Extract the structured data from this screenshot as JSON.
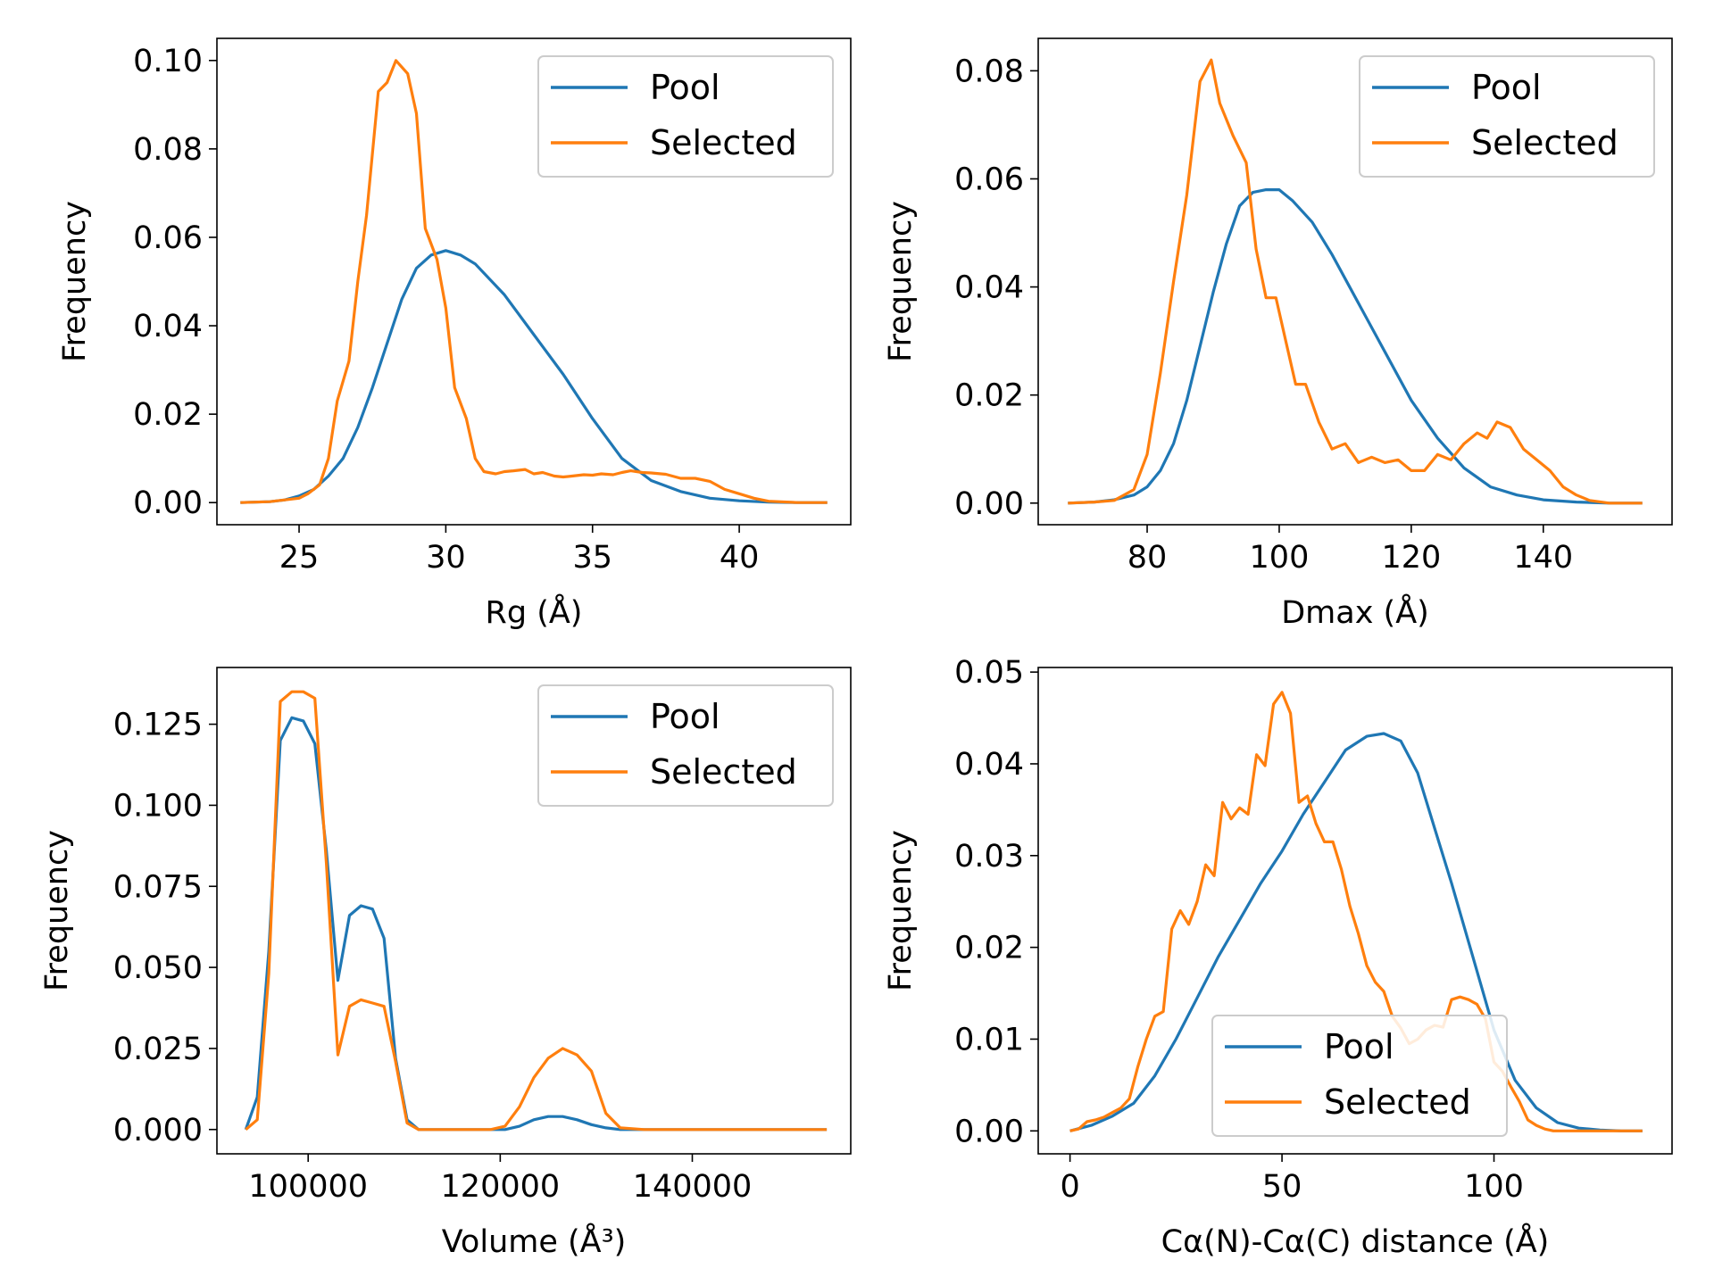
{
  "colors": {
    "pool": "#1f77b4",
    "selected": "#ff7f0e",
    "axes": "#000000",
    "legend_border": "#cccccc"
  },
  "legend_labels": [
    "Pool",
    "Selected"
  ],
  "chart_data": [
    {
      "type": "line",
      "xlabel": "Rg (Å)",
      "ylabel": "Frequency",
      "xlim": [
        22.2,
        43.8
      ],
      "ylim": [
        -0.005,
        0.105
      ],
      "xticks": [
        25,
        30,
        35,
        40
      ],
      "yticks": [
        0.0,
        0.02,
        0.04,
        0.06,
        0.08,
        0.1
      ],
      "ytick_labels": [
        "0.00",
        "0.02",
        "0.04",
        "0.06",
        "0.08",
        "0.10"
      ],
      "grid": false,
      "legend": "top-right",
      "series": [
        {
          "name": "Pool",
          "x": [
            23,
            24,
            24.5,
            25,
            25.5,
            26,
            26.5,
            27,
            27.5,
            28,
            28.5,
            29,
            29.5,
            30,
            30.5,
            31,
            32,
            33,
            34,
            35,
            36,
            37,
            38,
            39,
            40,
            41,
            42,
            43
          ],
          "y": [
            0,
            0.0002,
            0.0006,
            0.0015,
            0.003,
            0.006,
            0.01,
            0.017,
            0.026,
            0.036,
            0.046,
            0.053,
            0.056,
            0.057,
            0.056,
            0.054,
            0.047,
            0.038,
            0.029,
            0.019,
            0.01,
            0.005,
            0.0025,
            0.001,
            0.0004,
            0.0001,
            0,
            0
          ]
        },
        {
          "name": "Selected",
          "x": [
            23,
            24,
            25,
            25.3,
            25.7,
            26,
            26.3,
            26.7,
            27,
            27.3,
            27.7,
            28,
            28.3,
            28.7,
            29,
            29.3,
            29.7,
            30,
            30.3,
            30.7,
            31,
            31.3,
            31.7,
            32,
            32.3,
            32.7,
            33,
            33.3,
            33.7,
            34,
            34.3,
            34.7,
            35,
            35.3,
            35.7,
            36,
            36.3,
            36.7,
            37,
            37.5,
            38,
            38.5,
            39,
            39.5,
            40,
            40.5,
            41,
            42,
            43
          ],
          "y": [
            0,
            0.0002,
            0.001,
            0.002,
            0.004,
            0.01,
            0.023,
            0.032,
            0.05,
            0.065,
            0.093,
            0.095,
            0.1,
            0.097,
            0.088,
            0.062,
            0.055,
            0.044,
            0.026,
            0.019,
            0.01,
            0.007,
            0.0065,
            0.007,
            0.0072,
            0.0075,
            0.0065,
            0.0068,
            0.006,
            0.0058,
            0.006,
            0.0063,
            0.0062,
            0.0065,
            0.0063,
            0.0068,
            0.0072,
            0.0068,
            0.0067,
            0.0064,
            0.0055,
            0.0055,
            0.0048,
            0.003,
            0.002,
            0.001,
            0.0003,
            0,
            0
          ]
        }
      ]
    },
    {
      "type": "line",
      "xlabel": "Dmax (Å)",
      "ylabel": "Frequency",
      "xlim": [
        63.5,
        159.5
      ],
      "ylim": [
        -0.004,
        0.086
      ],
      "xticks": [
        80,
        100,
        120,
        140
      ],
      "yticks": [
        0.0,
        0.02,
        0.04,
        0.06,
        0.08
      ],
      "ytick_labels": [
        "0.00",
        "0.02",
        "0.04",
        "0.06",
        "0.08"
      ],
      "grid": false,
      "legend": "top-right",
      "series": [
        {
          "name": "Pool",
          "x": [
            68,
            72,
            75,
            78,
            80,
            82,
            84,
            86,
            88,
            90,
            92,
            94,
            96,
            98,
            100,
            102,
            105,
            108,
            112,
            116,
            120,
            124,
            128,
            132,
            136,
            140,
            145,
            150,
            155
          ],
          "y": [
            0,
            0.0002,
            0.0006,
            0.0015,
            0.003,
            0.006,
            0.011,
            0.019,
            0.029,
            0.039,
            0.048,
            0.055,
            0.0575,
            0.058,
            0.058,
            0.056,
            0.052,
            0.046,
            0.037,
            0.028,
            0.019,
            0.012,
            0.0065,
            0.003,
            0.0015,
            0.0006,
            0.0002,
            0,
            0
          ]
        },
        {
          "name": "Selected",
          "x": [
            68,
            72,
            75,
            78,
            80,
            82,
            84,
            86,
            88,
            89.7,
            91,
            93,
            95,
            96.5,
            98,
            99.5,
            101,
            102.5,
            104,
            106,
            108,
            110,
            112,
            114,
            116,
            118,
            120,
            122,
            124,
            126,
            128,
            130,
            131.5,
            133,
            135,
            137,
            139,
            141,
            143,
            145,
            147,
            150,
            155
          ],
          "y": [
            0,
            0.0002,
            0.0005,
            0.0025,
            0.009,
            0.024,
            0.041,
            0.057,
            0.078,
            0.082,
            0.074,
            0.068,
            0.063,
            0.047,
            0.038,
            0.038,
            0.03,
            0.022,
            0.022,
            0.015,
            0.01,
            0.011,
            0.0075,
            0.0085,
            0.0075,
            0.008,
            0.006,
            0.006,
            0.009,
            0.008,
            0.011,
            0.013,
            0.012,
            0.015,
            0.014,
            0.01,
            0.008,
            0.006,
            0.003,
            0.0015,
            0.0005,
            0,
            0
          ]
        }
      ]
    },
    {
      "type": "line",
      "xlabel": "Volume (Å³)",
      "ylabel": "Frequency",
      "xlim": [
        90500,
        156500
      ],
      "ylim": [
        -0.0075,
        0.1425
      ],
      "xticks": [
        100000,
        120000,
        140000
      ],
      "yticks": [
        0.0,
        0.025,
        0.05,
        0.075,
        0.1,
        0.125
      ],
      "ytick_labels": [
        "0.000",
        "0.025",
        "0.050",
        "0.075",
        "0.100",
        "0.125"
      ],
      "grid": false,
      "legend": "top-right",
      "series": [
        {
          "name": "Pool",
          "x": [
            93500,
            94700,
            95900,
            97100,
            98300,
            99500,
            100700,
            101900,
            103100,
            104300,
            105500,
            106700,
            107900,
            109100,
            110300,
            111500,
            113000,
            116000,
            119000,
            120500,
            122000,
            123500,
            125000,
            126500,
            128000,
            129500,
            131000,
            132500,
            135000,
            140000,
            145000,
            150000,
            154000
          ],
          "y": [
            0,
            0.01,
            0.055,
            0.12,
            0.127,
            0.126,
            0.119,
            0.086,
            0.046,
            0.066,
            0.069,
            0.068,
            0.059,
            0.022,
            0.003,
            0,
            0,
            0,
            0,
            0,
            0.001,
            0.003,
            0.004,
            0.004,
            0.003,
            0.0015,
            0.0005,
            0,
            0,
            0,
            0,
            0,
            0
          ]
        },
        {
          "name": "Selected",
          "x": [
            93500,
            94700,
            95900,
            97100,
            98300,
            99500,
            100700,
            101900,
            103100,
            104300,
            105500,
            106700,
            107900,
            109100,
            110300,
            111500,
            113000,
            116000,
            119000,
            120500,
            122000,
            123500,
            125000,
            126500,
            128000,
            129500,
            131000,
            132500,
            135000,
            140000,
            145000,
            150000,
            154000
          ],
          "y": [
            0,
            0.003,
            0.048,
            0.132,
            0.135,
            0.135,
            0.133,
            0.082,
            0.023,
            0.038,
            0.04,
            0.039,
            0.038,
            0.021,
            0.002,
            0,
            0,
            0,
            0,
            0.001,
            0.007,
            0.016,
            0.022,
            0.025,
            0.023,
            0.018,
            0.005,
            0.0005,
            0,
            0,
            0,
            0,
            0
          ]
        }
      ]
    },
    {
      "type": "line",
      "xlabel": "Cα(N)-Cα(C) distance (Å)",
      "ylabel": "Frequency",
      "xlim": [
        -7.5,
        142
      ],
      "ylim": [
        -0.0025,
        0.0505
      ],
      "xticks": [
        0,
        50,
        100
      ],
      "yticks": [
        0.0,
        0.01,
        0.02,
        0.03,
        0.04,
        0.05
      ],
      "ytick_labels": [
        "0.00",
        "0.01",
        "0.02",
        "0.03",
        "0.04",
        "0.05"
      ],
      "grid": false,
      "legend": "bottom-center",
      "series": [
        {
          "name": "Pool",
          "x": [
            0,
            5,
            10,
            15,
            20,
            25,
            30,
            35,
            40,
            45,
            50,
            55,
            60,
            65,
            70,
            74,
            78,
            82,
            86,
            90,
            95,
            100,
            105,
            110,
            115,
            120,
            125,
            130,
            135
          ],
          "y": [
            0,
            0.0006,
            0.0016,
            0.003,
            0.006,
            0.01,
            0.0145,
            0.019,
            0.023,
            0.027,
            0.0305,
            0.0345,
            0.038,
            0.0415,
            0.043,
            0.0433,
            0.0425,
            0.039,
            0.033,
            0.027,
            0.019,
            0.011,
            0.0055,
            0.0025,
            0.0009,
            0.0003,
            0.0001,
            0,
            0
          ]
        },
        {
          "name": "Selected",
          "x": [
            0,
            2,
            4,
            6,
            8,
            10,
            12,
            14,
            16,
            18,
            20,
            22,
            24,
            26,
            28,
            30,
            32,
            34,
            36,
            38,
            40,
            42,
            44,
            46,
            48,
            50,
            52,
            54,
            56,
            58,
            60,
            62,
            64,
            66,
            68,
            70,
            72,
            74,
            76,
            78,
            80,
            82,
            84,
            86,
            88,
            90,
            92,
            94,
            96,
            98,
            100,
            102,
            104,
            106,
            108,
            110,
            112,
            114,
            116,
            118,
            120,
            122,
            124,
            126,
            128,
            130,
            132,
            135
          ],
          "y": [
            0,
            0.0002,
            0.001,
            0.0012,
            0.0015,
            0.002,
            0.0025,
            0.0035,
            0.007,
            0.01,
            0.0125,
            0.013,
            0.022,
            0.024,
            0.0225,
            0.025,
            0.029,
            0.0278,
            0.0358,
            0.034,
            0.0352,
            0.0345,
            0.041,
            0.0398,
            0.0465,
            0.0478,
            0.0455,
            0.0358,
            0.0365,
            0.0335,
            0.0315,
            0.0315,
            0.0285,
            0.0245,
            0.0215,
            0.018,
            0.0162,
            0.0152,
            0.0125,
            0.0112,
            0.0095,
            0.01,
            0.011,
            0.0115,
            0.0113,
            0.0143,
            0.0146,
            0.0143,
            0.0138,
            0.0122,
            0.0075,
            0.0065,
            0.0048,
            0.0032,
            0.0012,
            0.0006,
            0.0002,
            0,
            0,
            0,
            0,
            0,
            0,
            0,
            0,
            0,
            0,
            0
          ]
        }
      ]
    }
  ]
}
